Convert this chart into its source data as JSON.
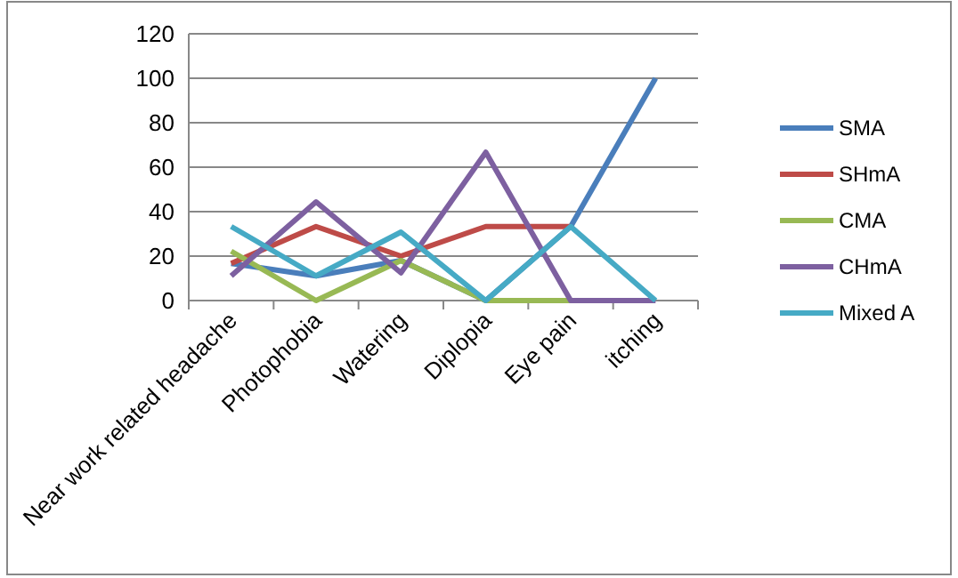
{
  "chart_data": {
    "type": "line",
    "categories": [
      "Near work related headache",
      "Photophobia",
      "Watering",
      "Diplopia",
      "Eye pain",
      "itching"
    ],
    "series": [
      {
        "name": "SMA",
        "color": "#4a7ebb",
        "values": [
          16.7,
          11.1,
          18,
          0,
          33.3,
          100
        ]
      },
      {
        "name": "SHmA",
        "color": "#be4b48",
        "values": [
          16.7,
          33.3,
          20,
          33.3,
          33.3,
          null
        ]
      },
      {
        "name": "CMA",
        "color": "#98b954",
        "values": [
          22.2,
          0,
          18,
          0,
          0,
          null
        ]
      },
      {
        "name": "CHmA",
        "color": "#7d60a0",
        "values": [
          11.1,
          44.4,
          12.5,
          66.7,
          0,
          0
        ]
      },
      {
        "name": "Mixed A",
        "color": "#46aac5",
        "values": [
          33.3,
          11.1,
          30.8,
          0,
          33.3,
          0
        ]
      }
    ],
    "ylim": [
      0,
      120
    ],
    "yticks": [
      0,
      20,
      40,
      60,
      80,
      100,
      120
    ],
    "grid": "y",
    "legend": "right",
    "marker": "none",
    "line_style": "solid"
  }
}
